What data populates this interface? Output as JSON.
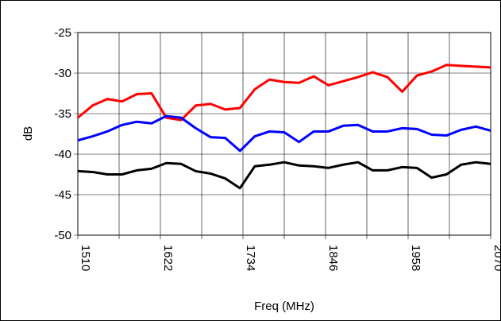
{
  "chart_data": {
    "type": "line",
    "x_label": "Freq (MHz)",
    "y_label": "dB",
    "x": [
      1510,
      1530,
      1550,
      1570,
      1590,
      1610,
      1630,
      1650,
      1670,
      1690,
      1710,
      1730,
      1750,
      1770,
      1790,
      1810,
      1830,
      1850,
      1870,
      1890,
      1910,
      1930,
      1950,
      1970,
      1990,
      2010,
      2030,
      2050,
      2070
    ],
    "series": [
      {
        "color": "#ff0000",
        "values": [
          -35.5,
          -34,
          -33.2,
          -33.5,
          -32.6,
          -32.5,
          -35.5,
          -35.8,
          -34,
          -33.8,
          -34.5,
          -34.3,
          -32,
          -30.8,
          -31.1,
          -31.2,
          -30.4,
          -31.5,
          -31,
          -30.5,
          -29.9,
          -30.5,
          -32.3,
          -30.3,
          -29.8,
          -29,
          -29.1,
          -29.2,
          -29.3
        ]
      },
      {
        "color": "#0000ff",
        "values": [
          -38.3,
          -37.8,
          -37.2,
          -36.4,
          -36,
          -36.2,
          -35.3,
          -35.5,
          -36.8,
          -37.9,
          -38,
          -39.6,
          -37.8,
          -37.2,
          -37.3,
          -38.5,
          -37.2,
          -37.2,
          -36.5,
          -36.4,
          -37.2,
          -37.2,
          -36.8,
          -36.9,
          -37.6,
          -37.7,
          -37,
          -36.6,
          -37.1
        ]
      },
      {
        "color": "#000000",
        "values": [
          -42.1,
          -42.2,
          -42.5,
          -42.5,
          -42,
          -41.8,
          -41.1,
          -41.2,
          -42.1,
          -42.4,
          -43,
          -44.2,
          -41.5,
          -41.3,
          -41,
          -41.4,
          -41.5,
          -41.7,
          -41.3,
          -41,
          -42,
          -42,
          -41.6,
          -41.7,
          -42.9,
          -42.5,
          -41.3,
          -41,
          -41.2
        ]
      }
    ],
    "xlim": [
      1510,
      2070
    ],
    "xticks": [
      1510,
      {
        "value": 1566,
        "label": null
      },
      1622,
      {
        "value": 1678,
        "label": null
      },
      1734,
      {
        "value": 1790,
        "label": null
      },
      1846,
      {
        "value": 1902,
        "label": null
      },
      1958,
      {
        "value": 2014,
        "label": null
      },
      2070
    ],
    "ylim": [
      -50,
      -25
    ],
    "yticks": [
      -25,
      -30,
      -35,
      -40,
      -45,
      -50
    ],
    "grid": true
  }
}
